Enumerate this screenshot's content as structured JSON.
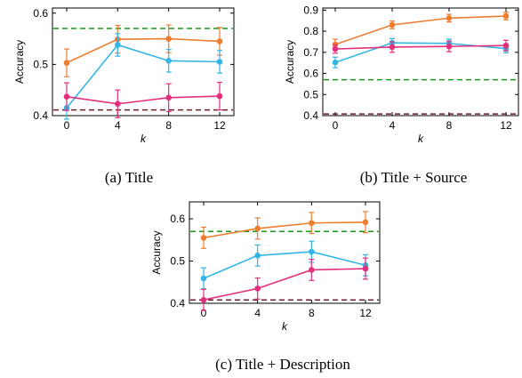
{
  "colors": {
    "orange": "#ed7d31",
    "blue": "#33b5e5",
    "pink": "#e3307d",
    "green": "#1a9a1a",
    "darkred": "#6b1f2a"
  },
  "chart_data": [
    {
      "type": "line",
      "caption": "(a) Title",
      "xlabel": "k",
      "ylabel": "Accuracy",
      "x": [
        0,
        4,
        8,
        12
      ],
      "xticks": [
        "0",
        "4",
        "8",
        "12"
      ],
      "ylim": [
        0.4,
        0.61
      ],
      "yticks": [
        "0.4",
        "0.5",
        "0.6"
      ],
      "series": [
        {
          "color": "#ed7d31",
          "values": [
            0.503,
            0.549,
            0.55,
            0.545
          ],
          "err": [
            0.027,
            0.027,
            0.027,
            0.027
          ]
        },
        {
          "color": "#33b5e5",
          "values": [
            0.415,
            0.538,
            0.507,
            0.505
          ],
          "err": [
            0.022,
            0.022,
            0.022,
            0.022
          ]
        },
        {
          "color": "#e3307d",
          "values": [
            0.437,
            0.423,
            0.435,
            0.438
          ],
          "err": [
            0.027,
            0.027,
            0.027,
            0.027
          ]
        }
      ],
      "hlines": [
        {
          "color": "#1a9a1a",
          "y": 0.57
        },
        {
          "color": "#6b1f2a",
          "y": 0.411
        }
      ]
    },
    {
      "type": "line",
      "caption": "(b) Title + Source",
      "xlabel": "k",
      "ylabel": "Accuracy",
      "x": [
        0,
        4,
        8,
        12
      ],
      "xticks": [
        "0",
        "4",
        "8",
        "12"
      ],
      "ylim": [
        0.4,
        0.91
      ],
      "yticks": [
        "0.4",
        "0.5",
        "0.6",
        "0.7",
        "0.8",
        "0.9"
      ],
      "series": [
        {
          "color": "#ed7d31",
          "values": [
            0.737,
            0.83,
            0.862,
            0.872
          ],
          "err": [
            0.025,
            0.018,
            0.018,
            0.018
          ]
        },
        {
          "color": "#33b5e5",
          "values": [
            0.652,
            0.745,
            0.742,
            0.718
          ],
          "err": [
            0.025,
            0.02,
            0.02,
            0.02
          ]
        },
        {
          "color": "#e3307d",
          "values": [
            0.716,
            0.725,
            0.728,
            0.732
          ],
          "err": [
            0.02,
            0.025,
            0.025,
            0.025
          ]
        }
      ],
      "hlines": [
        {
          "color": "#1a9a1a",
          "y": 0.57
        },
        {
          "color": "#6b1f2a",
          "y": 0.408
        }
      ]
    },
    {
      "type": "line",
      "caption": "(c) Title + Description",
      "xlabel": "k",
      "ylabel": "Accuracy",
      "x": [
        0,
        4,
        8,
        12
      ],
      "xticks": [
        "0",
        "4",
        "8",
        "12"
      ],
      "ylim": [
        0.4,
        0.64
      ],
      "yticks": [
        "0.4",
        "0.5",
        "0.6"
      ],
      "series": [
        {
          "color": "#ed7d31",
          "values": [
            0.555,
            0.577,
            0.59,
            0.592
          ],
          "err": [
            0.025,
            0.025,
            0.025,
            0.025
          ]
        },
        {
          "color": "#33b5e5",
          "values": [
            0.459,
            0.513,
            0.522,
            0.49
          ],
          "err": [
            0.025,
            0.025,
            0.025,
            0.025
          ]
        },
        {
          "color": "#e3307d",
          "values": [
            0.408,
            0.435,
            0.479,
            0.482
          ],
          "err": [
            0.025,
            0.025,
            0.025,
            0.025
          ]
        }
      ],
      "hlines": [
        {
          "color": "#1a9a1a",
          "y": 0.57
        },
        {
          "color": "#6b1f2a",
          "y": 0.408
        }
      ]
    }
  ]
}
